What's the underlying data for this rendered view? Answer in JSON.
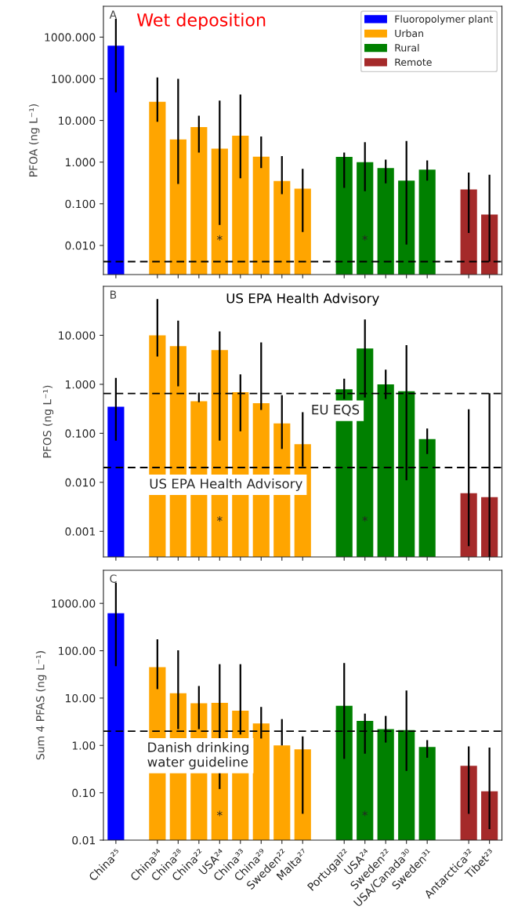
{
  "chart_data": [
    {
      "type": "bar",
      "title": "A",
      "subtitle": "Wet deposition",
      "ylabel": "PFOA (ng L⁻¹)",
      "categories": [
        null,
        null,
        null,
        null,
        null,
        null,
        null,
        null,
        null,
        null,
        null,
        null,
        null,
        null,
        null,
        null,
        null,
        null,
        null
      ],
      "series": [
        {
          "name": "Fluoropolymer plant",
          "color": "#0000ff",
          "values": [
            620,
            null,
            null,
            null,
            null,
            null,
            null,
            null,
            null,
            null,
            null,
            null,
            null,
            null,
            null,
            null,
            null,
            null,
            null
          ],
          "errors": [
            [
              47,
              2750
            ],
            null,
            null,
            null,
            null,
            null,
            null,
            null,
            null,
            null,
            null,
            null,
            null,
            null,
            null,
            null,
            null,
            null,
            null
          ]
        },
        {
          "name": "Urban",
          "color": "#ffa500",
          "values": [
            null,
            null,
            28,
            3.5,
            6.9,
            2.1,
            4.3,
            1.35,
            0.35,
            0.23,
            null,
            null,
            null,
            null,
            null,
            null,
            null,
            null,
            null
          ],
          "errors": [
            null,
            null,
            [
              9.3,
              108
            ],
            [
              0.3,
              100
            ],
            [
              1.7,
              13
            ],
            [
              0.031,
              30
            ],
            [
              0.41,
              42
            ],
            [
              0.72,
              4.1
            ],
            [
              0.17,
              1.4
            ],
            [
              0.021,
              0.69
            ],
            null,
            null,
            null,
            null,
            null,
            null,
            null,
            null,
            null
          ]
        },
        {
          "name": "Rural",
          "color": "#008000",
          "values": [
            null,
            null,
            null,
            null,
            null,
            null,
            null,
            null,
            null,
            null,
            null,
            1.33,
            1.0,
            0.72,
            0.36,
            0.66,
            null,
            null,
            null
          ],
          "errors": [
            null,
            null,
            null,
            null,
            null,
            null,
            null,
            null,
            null,
            null,
            null,
            [
              0.24,
              1.7
            ],
            [
              0.2,
              3.0
            ],
            [
              0.31,
              1.15
            ],
            [
              0.0105,
              3.2
            ],
            [
              0.36,
              1.1
            ],
            null,
            null,
            null
          ]
        },
        {
          "name": "Remote",
          "color": "#a52a2a",
          "values": [
            null,
            null,
            null,
            null,
            null,
            null,
            null,
            null,
            null,
            null,
            null,
            null,
            null,
            null,
            null,
            null,
            null,
            0.22,
            0.055
          ],
          "errors": [
            null,
            null,
            null,
            null,
            null,
            null,
            null,
            null,
            null,
            null,
            null,
            null,
            null,
            null,
            null,
            null,
            null,
            [
              0.02,
              0.56
            ],
            [
              0.0041,
              0.5
            ]
          ]
        }
      ],
      "log": "y",
      "ylim": [
        0.002,
        5500
      ],
      "yticks": [
        {
          "value": 0.01,
          "label": "0.010"
        },
        {
          "value": 0.1,
          "label": "0.100"
        },
        {
          "value": 1,
          "label": "1.000"
        },
        {
          "value": 10,
          "label": "10.000"
        },
        {
          "value": 100,
          "label": "100.000"
        },
        {
          "value": 1000,
          "label": "1000.000"
        }
      ],
      "ref_lines": [
        {
          "axis": "y",
          "value": 0.0041,
          "line_style": "dashed",
          "color": "#000000"
        }
      ],
      "annotations": [
        "*",
        "*"
      ],
      "legend": "top right"
    },
    {
      "type": "bar",
      "title": "B",
      "subtitle": "US EPA Health Advisory",
      "ylabel": "PFOS (ng L⁻¹)",
      "categories": [
        null,
        null,
        null,
        null,
        null,
        null,
        null,
        null,
        null,
        null,
        null,
        null,
        null,
        null,
        null,
        null,
        null,
        null,
        null
      ],
      "series": [
        {
          "color": "#0000ff",
          "values": [
            0.35,
            null,
            null,
            null,
            null,
            null,
            null,
            null,
            null,
            null,
            null,
            null,
            null,
            null,
            null,
            null,
            null,
            null,
            null
          ],
          "errors": [
            [
              0.071,
              1.35
            ],
            null,
            null,
            null,
            null,
            null,
            null,
            null,
            null,
            null,
            null,
            null,
            null,
            null,
            null,
            null,
            null,
            null,
            null
          ]
        },
        {
          "color": "#ffa500",
          "values": [
            null,
            null,
            10,
            6.0,
            0.45,
            5.0,
            0.69,
            0.41,
            0.16,
            0.06,
            null,
            null,
            null,
            null,
            null,
            null,
            null,
            null,
            null
          ],
          "errors": [
            null,
            null,
            [
              3.7,
              55
            ],
            [
              0.91,
              20
            ],
            [
              0.43,
              0.68
            ],
            [
              0.071,
              12
            ],
            [
              0.11,
              1.6
            ],
            [
              0.3,
              7.2
            ],
            [
              0.048,
              0.6
            ],
            [
              0.021,
              0.27
            ],
            null,
            null,
            null,
            null,
            null,
            null,
            null,
            null,
            null
          ]
        },
        {
          "color": "#008000",
          "values": [
            null,
            null,
            null,
            null,
            null,
            null,
            null,
            null,
            null,
            null,
            null,
            0.79,
            5.4,
            1.0,
            0.72,
            0.076,
            null,
            null,
            null
          ],
          "errors": [
            null,
            null,
            null,
            null,
            null,
            null,
            null,
            null,
            null,
            null,
            null,
            [
              0.5,
              1.3
            ],
            [
              0.54,
              21
            ],
            [
              0.5,
              2.0
            ],
            [
              0.011,
              6.3
            ],
            [
              0.038,
              0.126
            ],
            null,
            null,
            null
          ]
        },
        {
          "color": "#a52a2a",
          "values": [
            null,
            null,
            null,
            null,
            null,
            null,
            null,
            null,
            null,
            null,
            null,
            null,
            null,
            null,
            null,
            null,
            null,
            0.006,
            0.005
          ],
          "errors": [
            null,
            null,
            null,
            null,
            null,
            null,
            null,
            null,
            null,
            null,
            null,
            null,
            null,
            null,
            null,
            null,
            null,
            [
              0.0005,
              0.31
            ],
            [
              0.0003,
              0.66
            ]
          ]
        }
      ],
      "log": "y",
      "ylim": [
        0.0003,
        100
      ],
      "yticks": [
        {
          "value": 0.001,
          "label": "0.001"
        },
        {
          "value": 0.01,
          "label": "0.010"
        },
        {
          "value": 0.1,
          "label": "0.100"
        },
        {
          "value": 1,
          "label": "1.000"
        },
        {
          "value": 10,
          "label": "10.000"
        }
      ],
      "ref_lines": [
        {
          "axis": "y",
          "value": 0.65,
          "label": "EU EQS",
          "line_style": "dashed",
          "color": "#000000"
        },
        {
          "axis": "y",
          "value": 0.02,
          "label": "US EPA Health Advisory",
          "line_style": "dashed",
          "color": "#000000"
        }
      ],
      "annotations": [
        "*",
        "*"
      ]
    },
    {
      "type": "bar",
      "title": "C",
      "ylabel": "Sum 4 PFAS (ng L⁻¹)",
      "categories": [
        "China²⁵",
        null,
        "China³⁴",
        "China²⁸",
        "China²²",
        "USA²⁴",
        "China³³",
        "China²⁹",
        "Sweden²²",
        "Malta²⁷",
        null,
        "Portugal²²",
        "USA²⁴",
        "Sweden²²",
        "USA/Canada³⁰",
        "Sweden³¹",
        null,
        "Antarctica³²",
        "Tibet²³"
      ],
      "series": [
        {
          "color": "#0000ff",
          "values": [
            620,
            null,
            null,
            null,
            null,
            null,
            null,
            null,
            null,
            null,
            null,
            null,
            null,
            null,
            null,
            null,
            null,
            null,
            null
          ],
          "errors": [
            [
              47,
              2750
            ],
            null,
            null,
            null,
            null,
            null,
            null,
            null,
            null,
            null,
            null,
            null,
            null,
            null,
            null,
            null,
            null,
            null,
            null
          ]
        },
        {
          "color": "#ffa500",
          "values": [
            null,
            null,
            45,
            12.6,
            7.8,
            7.9,
            5.4,
            2.9,
            1.0,
            0.83,
            null,
            null,
            null,
            null,
            null,
            null,
            null,
            null,
            null
          ],
          "errors": [
            null,
            null,
            [
              15.5,
              175
            ],
            [
              2.2,
              102
            ],
            [
              2.2,
              18
            ],
            [
              0.12,
              52
            ],
            [
              1.7,
              52
            ],
            [
              1.4,
              6.5
            ],
            [
              1.0,
              3.6
            ],
            [
              0.036,
              1.55
            ],
            null,
            null,
            null,
            null,
            null,
            null,
            null,
            null,
            null
          ]
        },
        {
          "color": "#008000",
          "values": [
            null,
            null,
            null,
            null,
            null,
            null,
            null,
            null,
            null,
            null,
            null,
            6.9,
            3.3,
            2.2,
            2.1,
            0.93,
            null,
            null,
            null
          ],
          "errors": [
            null,
            null,
            null,
            null,
            null,
            null,
            null,
            null,
            null,
            null,
            null,
            [
              0.52,
              55
            ],
            [
              0.67,
              4.7
            ],
            [
              1.15,
              4.2
            ],
            [
              0.29,
              14.5
            ],
            [
              0.55,
              1.3
            ],
            null,
            null,
            null
          ]
        },
        {
          "color": "#a52a2a",
          "values": [
            null,
            null,
            null,
            null,
            null,
            null,
            null,
            null,
            null,
            null,
            null,
            null,
            null,
            null,
            null,
            null,
            null,
            0.37,
            0.107
          ],
          "errors": [
            null,
            null,
            null,
            null,
            null,
            null,
            null,
            null,
            null,
            null,
            null,
            null,
            null,
            null,
            null,
            null,
            null,
            [
              0.036,
              0.95
            ],
            [
              0.017,
              0.9
            ]
          ]
        }
      ],
      "log": "y",
      "ylim": [
        0.01,
        5000
      ],
      "yticks": [
        {
          "value": 0.01,
          "label": "0.01"
        },
        {
          "value": 0.1,
          "label": "0.10"
        },
        {
          "value": 1,
          "label": "1.00"
        },
        {
          "value": 10,
          "label": "10.00"
        },
        {
          "value": 100,
          "label": "100.00"
        },
        {
          "value": 1000,
          "label": "1000.00"
        }
      ],
      "ref_lines": [
        {
          "axis": "y",
          "value": 2.0,
          "label": "Danish drinking\nwater guideline",
          "line_style": "dashed",
          "color": "#000000"
        }
      ],
      "annotations": [
        "*",
        "*"
      ]
    }
  ]
}
